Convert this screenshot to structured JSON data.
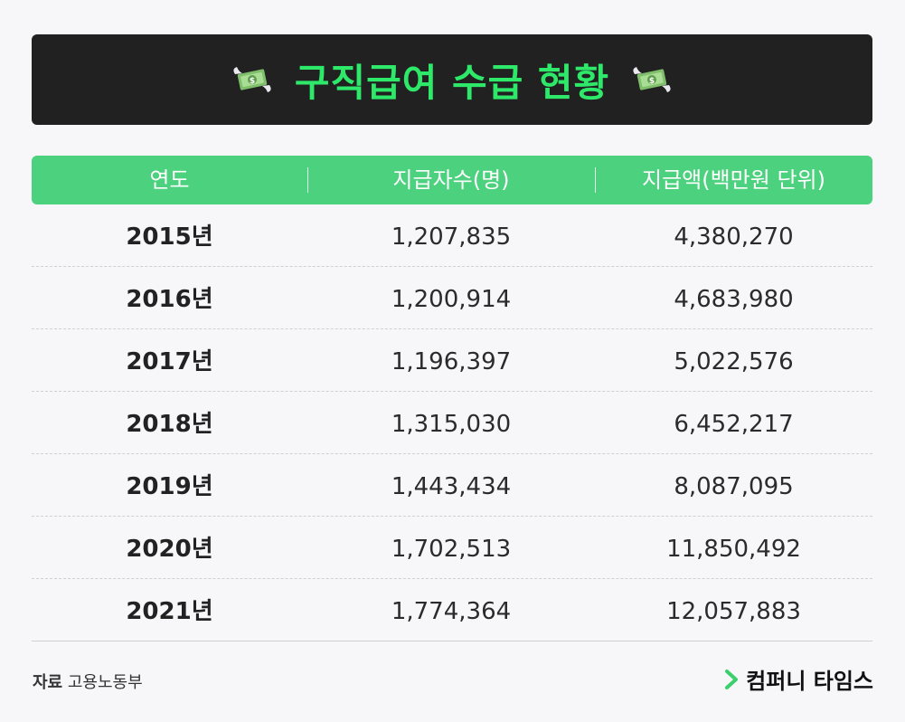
{
  "title": "구직급여 수급 현황",
  "icons": {
    "title_left": "flying-money-icon",
    "title_right": "flying-money-icon",
    "brand": "chevron-right-icon"
  },
  "colors": {
    "title_bg": "#212121",
    "title_text": "#2ee86a",
    "header_bg": "#4cd17e",
    "brand_mark": "#3ccf6e"
  },
  "chart_data": {
    "type": "table",
    "columns": [
      "연도",
      "지급자수(명)",
      "지급액(백만원 단위)"
    ],
    "rows": [
      {
        "year": "2015년",
        "count": "1,207,835",
        "amount": "4,380,270"
      },
      {
        "year": "2016년",
        "count": "1,200,914",
        "amount": "4,683,980"
      },
      {
        "year": "2017년",
        "count": "1,196,397",
        "amount": "5,022,576"
      },
      {
        "year": "2018년",
        "count": "1,315,030",
        "amount": "6,452,217"
      },
      {
        "year": "2019년",
        "count": "1,443,434",
        "amount": "8,087,095"
      },
      {
        "year": "2020년",
        "count": "1,702,513",
        "amount": "11,850,492"
      },
      {
        "year": "2021년",
        "count": "1,774,364",
        "amount": "12,057,883"
      }
    ]
  },
  "footer": {
    "source_label": "자료",
    "source_value": "고용노동부",
    "brand": "컴퍼니 타임스"
  }
}
